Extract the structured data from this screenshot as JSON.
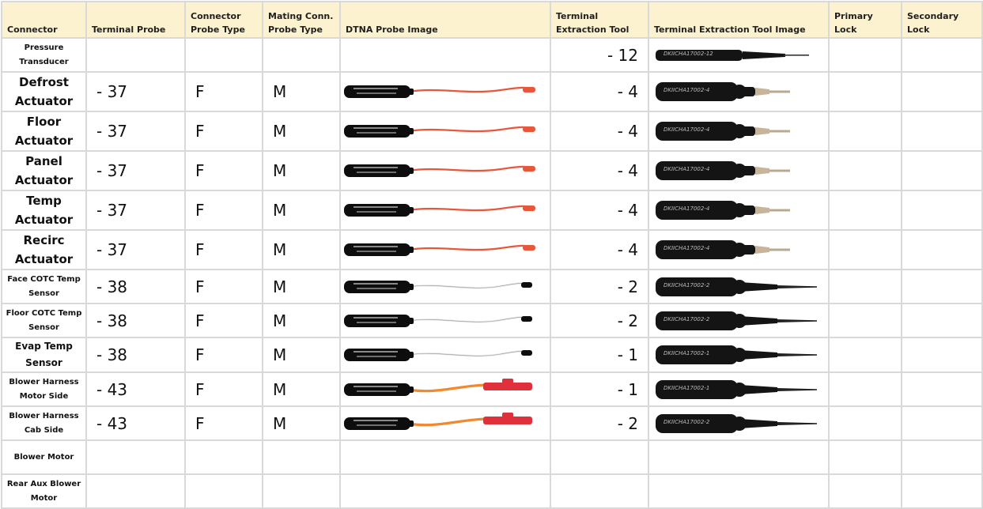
{
  "headers": {
    "connector": "Connector",
    "terminal_probe": "Terminal Probe",
    "connector_probe_type": "Connector\nProbe Type",
    "mating_conn_probe_type": "Mating Conn.\nProbe Type",
    "dtna_probe_image": "DTNA Probe Image",
    "terminal_extraction_tool": "Terminal\nExtraction Tool",
    "terminal_extraction_tool_image": "Terminal Extraction Tool Image",
    "primary_lock": "Primary\nLock",
    "secondary_lock": "Secondary\nLock"
  },
  "rows": [
    {
      "connector": "Pressure Transducer",
      "terminal_probe": "",
      "conn_type": "",
      "mating_type": "",
      "probe_image": "none",
      "extraction_tool": "- 12",
      "tool_image": "tool-thin",
      "tool_label": "DKIICHA17002-12"
    },
    {
      "connector": "Defrost Actuator",
      "terminal_probe": "- 37",
      "conn_type": "F",
      "mating_type": "M",
      "probe_image": "probe-red-thin",
      "extraction_tool": "- 4",
      "tool_image": "tool-tan",
      "tool_label": "DKIICHA17002-4"
    },
    {
      "connector": "Floor Actuator",
      "terminal_probe": "- 37",
      "conn_type": "F",
      "mating_type": "M",
      "probe_image": "probe-red-thin",
      "extraction_tool": "- 4",
      "tool_image": "tool-tan",
      "tool_label": "DKIICHA17002-4"
    },
    {
      "connector": "Panel Actuator",
      "terminal_probe": "- 37",
      "conn_type": "F",
      "mating_type": "M",
      "probe_image": "probe-red-thin",
      "extraction_tool": "- 4",
      "tool_image": "tool-tan",
      "tool_label": "DKIICHA17002-4"
    },
    {
      "connector": "Temp Actuator",
      "terminal_probe": "- 37",
      "conn_type": "F",
      "mating_type": "M",
      "probe_image": "probe-red-thin",
      "extraction_tool": "- 4",
      "tool_image": "tool-tan",
      "tool_label": "DKIICHA17002-4"
    },
    {
      "connector": "Recirc Actuator",
      "terminal_probe": "- 37",
      "conn_type": "F",
      "mating_type": "M",
      "probe_image": "probe-red-thin",
      "extraction_tool": "- 4",
      "tool_image": "tool-tan",
      "tool_label": "DKIICHA17002-4"
    },
    {
      "connector": "Face COTC Temp Sensor",
      "terminal_probe": "- 38",
      "conn_type": "F",
      "mating_type": "M",
      "probe_image": "probe-white",
      "extraction_tool": "- 2",
      "tool_image": "tool-black",
      "tool_label": "DKIICHA17002-2"
    },
    {
      "connector": "Floor COTC Temp Sensor",
      "terminal_probe": "- 38",
      "conn_type": "F",
      "mating_type": "M",
      "probe_image": "probe-white",
      "extraction_tool": "- 2",
      "tool_image": "tool-black",
      "tool_label": "DKIICHA17002-2"
    },
    {
      "connector": "Evap Temp Sensor",
      "terminal_probe": "- 38",
      "conn_type": "F",
      "mating_type": "M",
      "probe_image": "probe-white",
      "extraction_tool": "- 1",
      "tool_image": "tool-black",
      "tool_label": "DKIICHA17002-1"
    },
    {
      "connector": "Blower Harness Motor Side",
      "terminal_probe": "- 43",
      "conn_type": "F",
      "mating_type": "M",
      "probe_image": "probe-orange",
      "extraction_tool": "- 1",
      "tool_image": "tool-black",
      "tool_label": "DKIICHA17002-1"
    },
    {
      "connector": "Blower Harness Cab Side",
      "terminal_probe": "- 43",
      "conn_type": "F",
      "mating_type": "M",
      "probe_image": "probe-orange",
      "extraction_tool": "- 2",
      "tool_image": "tool-black",
      "tool_label": "DKIICHA17002-2"
    },
    {
      "connector": "Blower Motor",
      "terminal_probe": "",
      "conn_type": "",
      "mating_type": "",
      "probe_image": "none",
      "extraction_tool": "",
      "tool_image": "none",
      "tool_label": ""
    },
    {
      "connector": "Rear Aux Blower Motor",
      "terminal_probe": "",
      "conn_type": "",
      "mating_type": "",
      "probe_image": "none",
      "extraction_tool": "",
      "tool_image": "none",
      "tool_label": ""
    }
  ],
  "colors": {
    "header_bg": "#fdf2d0",
    "grid": "#d9d9d9",
    "probe_body": "#0d0d0d",
    "wire_red": "#e8563c",
    "wire_orange": "#f08a30",
    "wire_white": "#e6e6e6",
    "tool_body": "#141414",
    "tool_tan": "#c7b49a"
  }
}
